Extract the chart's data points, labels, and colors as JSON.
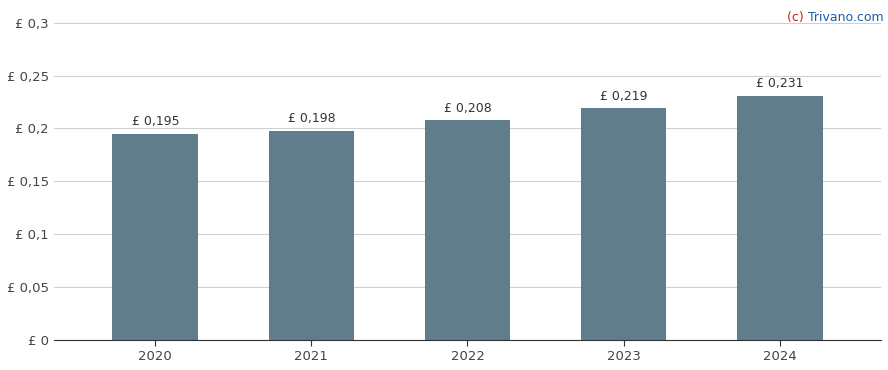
{
  "categories": [
    2020,
    2021,
    2022,
    2023,
    2024
  ],
  "values": [
    0.195,
    0.198,
    0.208,
    0.219,
    0.231
  ],
  "bar_color": "#607d8b",
  "bar_labels": [
    "£ 0,195",
    "£ 0,198",
    "£ 0,208",
    "£ 0,219",
    "£ 0,231"
  ],
  "ytick_labels": [
    "£ 0",
    "£ 0,05",
    "£ 0,1",
    "£ 0,15",
    "£ 0,2",
    "£ 0,25",
    "£ 0,3"
  ],
  "ytick_values": [
    0,
    0.05,
    0.1,
    0.15,
    0.2,
    0.25,
    0.3
  ],
  "ylim": [
    0,
    0.315
  ],
  "watermark_c": "(c) ",
  "watermark_rest": "Trivano.com",
  "watermark_color_c": "#cc2200",
  "watermark_color_rest": "#1a5fa8",
  "background_color": "#ffffff",
  "grid_color": "#d0d0d0",
  "bar_label_fontsize": 9,
  "tick_fontsize": 9.5,
  "watermark_fontsize": 9
}
